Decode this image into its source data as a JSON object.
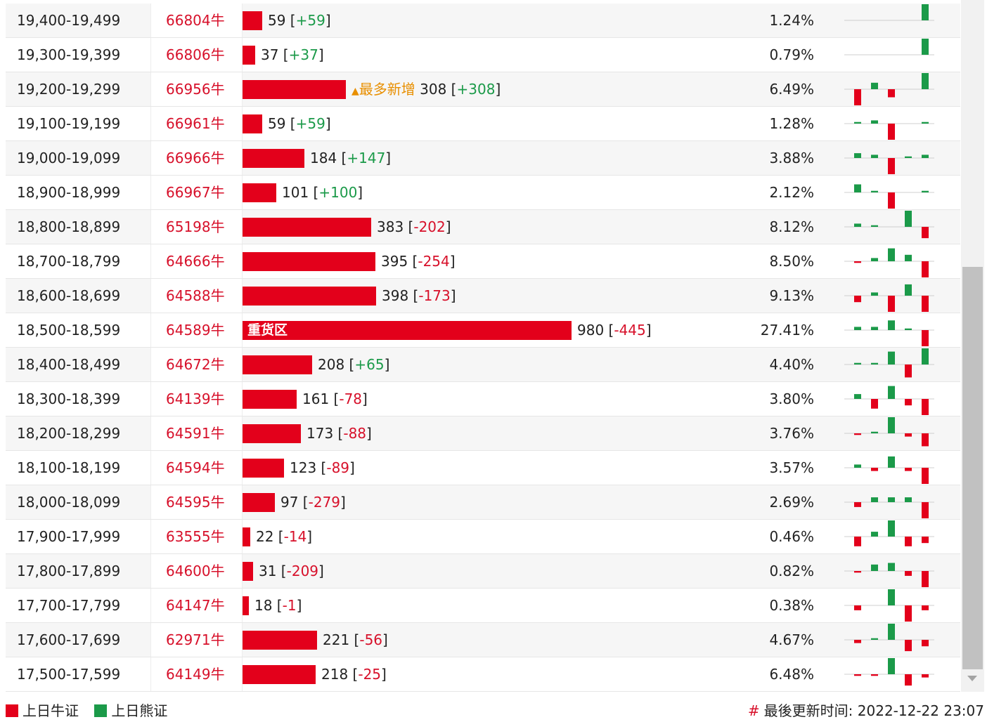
{
  "colors": {
    "bull": "#e3001b",
    "bear": "#1b9a49",
    "note": "#e88f00"
  },
  "bar_scale_max": 980,
  "rows": [
    {
      "range": "19,400-19,499",
      "code": "66804牛",
      "count": 59,
      "count_text": "59",
      "change": "+59",
      "label": "",
      "note": "",
      "pct": "1.24%",
      "spark": [
        0,
        0,
        0,
        0,
        10
      ]
    },
    {
      "range": "19,300-19,399",
      "code": "66806牛",
      "count": 37,
      "count_text": "37",
      "change": "+37",
      "label": "",
      "note": "",
      "pct": "0.79%",
      "spark": [
        0,
        0,
        0,
        0,
        10
      ]
    },
    {
      "range": "19,200-19,299",
      "code": "66956牛",
      "count": 308,
      "count_text": "308",
      "change": "+308",
      "label": "",
      "note": "最多新增",
      "pct": "6.49%",
      "spark": [
        -10,
        4,
        -5,
        0,
        10
      ]
    },
    {
      "range": "19,100-19,199",
      "code": "66961牛",
      "count": 59,
      "count_text": "59",
      "change": "+59",
      "label": "",
      "note": "",
      "pct": "1.28%",
      "spark": [
        1,
        2,
        -10,
        0,
        1
      ]
    },
    {
      "range": "19,000-19,099",
      "code": "66966牛",
      "count": 184,
      "count_text": "184",
      "change": "+147",
      "label": "",
      "note": "",
      "pct": "3.88%",
      "spark": [
        3,
        2,
        -10,
        1,
        2
      ]
    },
    {
      "range": "18,900-18,999",
      "code": "66967牛",
      "count": 101,
      "count_text": "101",
      "change": "+100",
      "label": "",
      "note": "",
      "pct": "2.12%",
      "spark": [
        5,
        1,
        -10,
        0,
        1
      ]
    },
    {
      "range": "18,800-18,899",
      "code": "65198牛",
      "count": 383,
      "count_text": "383",
      "change": "-202",
      "label": "",
      "note": "",
      "pct": "8.12%",
      "spark": [
        2,
        1,
        0,
        10,
        -7
      ]
    },
    {
      "range": "18,700-18,799",
      "code": "64666牛",
      "count": 395,
      "count_text": "395",
      "change": "-254",
      "label": "",
      "note": "",
      "pct": "8.50%",
      "spark": [
        -1,
        2,
        8,
        4,
        -10
      ]
    },
    {
      "range": "18,600-18,699",
      "code": "64588牛",
      "count": 398,
      "count_text": "398",
      "change": "-173",
      "label": "",
      "note": "",
      "pct": "9.13%",
      "spark": [
        -4,
        2,
        -10,
        7,
        -10
      ]
    },
    {
      "range": "18,500-18,599",
      "code": "64589牛",
      "count": 980,
      "count_text": "980",
      "change": "-445",
      "label": "重货区",
      "note": "",
      "pct": "27.41%",
      "spark": [
        2,
        2,
        6,
        1,
        -10
      ]
    },
    {
      "range": "18,400-18,499",
      "code": "64672牛",
      "count": 208,
      "count_text": "208",
      "change": "+65",
      "label": "",
      "note": "",
      "pct": "4.40%",
      "spark": [
        1,
        1,
        8,
        -8,
        10
      ]
    },
    {
      "range": "18,300-18,399",
      "code": "64139牛",
      "count": 161,
      "count_text": "161",
      "change": "-78",
      "label": "",
      "note": "",
      "pct": "3.80%",
      "spark": [
        3,
        -6,
        8,
        -4,
        -10
      ]
    },
    {
      "range": "18,200-18,299",
      "code": "64591牛",
      "count": 173,
      "count_text": "173",
      "change": "-88",
      "label": "",
      "note": "",
      "pct": "3.76%",
      "spark": [
        -1,
        1,
        10,
        -2,
        -8
      ]
    },
    {
      "range": "18,100-18,199",
      "code": "64594牛",
      "count": 123,
      "count_text": "123",
      "change": "-89",
      "label": "",
      "note": "",
      "pct": "3.57%",
      "spark": [
        2,
        -2,
        7,
        -2,
        -10
      ]
    },
    {
      "range": "18,000-18,099",
      "code": "64595牛",
      "count": 97,
      "count_text": "97",
      "change": "-279",
      "label": "",
      "note": "",
      "pct": "2.69%",
      "spark": [
        -3,
        3,
        3,
        3,
        -10
      ]
    },
    {
      "range": "17,900-17,999",
      "code": "63555牛",
      "count": 22,
      "count_text": "22",
      "change": "-14",
      "label": "",
      "note": "",
      "pct": "0.46%",
      "spark": [
        -6,
        3,
        10,
        -6,
        -4
      ]
    },
    {
      "range": "17,800-17,899",
      "code": "64600牛",
      "count": 31,
      "count_text": "31",
      "change": "-209",
      "label": "",
      "note": "",
      "pct": "0.82%",
      "spark": [
        -1,
        4,
        5,
        -3,
        -10
      ]
    },
    {
      "range": "17,700-17,799",
      "code": "64147牛",
      "count": 18,
      "count_text": "18",
      "change": "-1",
      "label": "",
      "note": "",
      "pct": "0.38%",
      "spark": [
        -3,
        0,
        10,
        -10,
        -3
      ]
    },
    {
      "range": "17,600-17,699",
      "code": "62971牛",
      "count": 221,
      "count_text": "221",
      "change": "-56",
      "label": "",
      "note": "",
      "pct": "4.67%",
      "spark": [
        -2,
        1,
        10,
        -7,
        -4
      ]
    },
    {
      "range": "17,500-17,599",
      "code": "64149牛",
      "count": 218,
      "count_text": "218",
      "change": "-25",
      "label": "",
      "note": "",
      "pct": "6.48%",
      "spark": [
        -1,
        -1,
        10,
        -7,
        -2
      ]
    }
  ],
  "legend": {
    "bull_label": "上日牛证",
    "bear_label": "上日熊证"
  },
  "footer": {
    "hash": "#",
    "label": "最後更新时间:",
    "timestamp": "2022-12-22 23:07"
  }
}
